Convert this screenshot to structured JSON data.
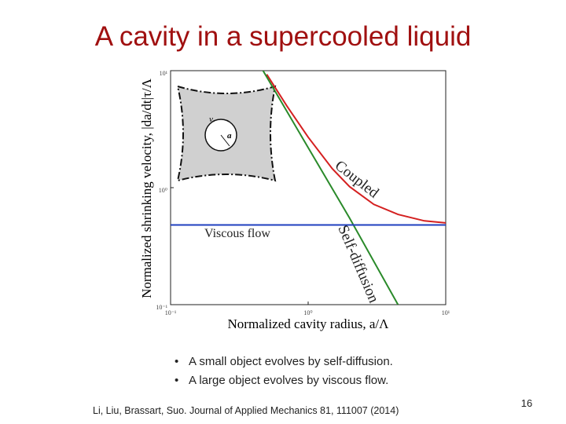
{
  "slide": {
    "title": "A cavity in a supercooled liquid",
    "bullets": [
      "A small object evolves by self-diffusion.",
      "A large object evolves by viscous flow."
    ],
    "citation": "Li, Liu, Brassart, Suo. Journal of Applied Mechanics 81, 111007 (2014)",
    "page_number": "16"
  },
  "inset": {
    "outer_label": "v",
    "radius_label": "a"
  },
  "chart_data": {
    "type": "line",
    "x_label": "Normalized cavity radius,  a/Λ",
    "y_label": "Normalized  shrinking  velocity,  |da/dt|τ/Λ",
    "xscale": "log",
    "yscale": "log",
    "xlim": [
      0.1,
      10
    ],
    "ylim": [
      0.1,
      10
    ],
    "xticks": [
      {
        "value": 0.1,
        "label": "10⁻¹"
      },
      {
        "value": 1,
        "label": "10⁰"
      },
      {
        "value": 10,
        "label": "10¹"
      }
    ],
    "yticks": [
      {
        "value": 0.1,
        "label": "10⁻¹"
      },
      {
        "value": 1,
        "label": "10⁰"
      },
      {
        "value": 10,
        "label": "10¹"
      }
    ],
    "series": [
      {
        "name": "Coupled",
        "color": "#d42020",
        "x": [
          0.5,
          0.7,
          1,
          1.5,
          2,
          3,
          4.5,
          7,
          10
        ],
        "values": [
          9.3,
          5.0,
          2.7,
          1.45,
          1.02,
          0.72,
          0.59,
          0.52,
          0.5
        ]
      },
      {
        "name": "Self-diffusion",
        "color": "#2a8a2a",
        "x": [
          0.47,
          1,
          2,
          4.5
        ],
        "values": [
          10,
          2.2,
          0.55,
          0.1
        ]
      },
      {
        "name": "Viscous flow",
        "color": "#1f3fbf",
        "x": [
          0.1,
          10
        ],
        "values": [
          0.48,
          0.48
        ]
      }
    ]
  }
}
